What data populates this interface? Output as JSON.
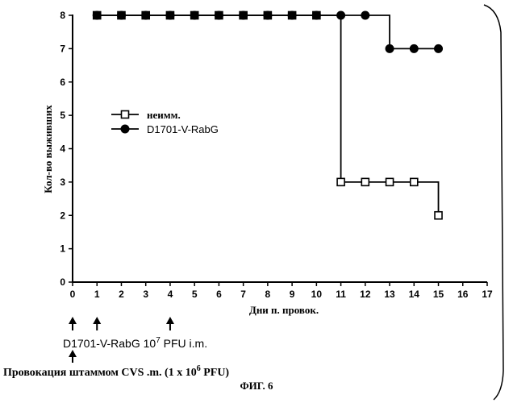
{
  "chart_data": {
    "type": "line",
    "ylabel": "Кол-во выживших",
    "xlabel": "Дни п. провок.",
    "xlim": [
      0,
      17
    ],
    "ylim": [
      0,
      8
    ],
    "xticks": [
      0,
      1,
      2,
      3,
      4,
      5,
      6,
      7,
      8,
      9,
      10,
      11,
      12,
      13,
      14,
      15,
      16,
      17
    ],
    "yticks": [
      0,
      1,
      2,
      3,
      4,
      5,
      6,
      7,
      8
    ],
    "grid": false,
    "legend": "center-left",
    "series": [
      {
        "name": "неимм.",
        "marker": "open-square",
        "step": true,
        "x": [
          1,
          2,
          3,
          4,
          5,
          6,
          7,
          8,
          9,
          10,
          11,
          12,
          13,
          14,
          15
        ],
        "y": [
          8,
          8,
          8,
          8,
          8,
          8,
          8,
          8,
          8,
          8,
          3,
          3,
          3,
          3,
          2
        ]
      },
      {
        "name": "D1701-V-RabG",
        "marker": "filled-circle",
        "step": true,
        "x": [
          1,
          2,
          3,
          4,
          5,
          6,
          7,
          8,
          9,
          10,
          11,
          12,
          13,
          14,
          15
        ],
        "y": [
          8,
          8,
          8,
          8,
          8,
          8,
          8,
          8,
          8,
          8,
          8,
          8,
          7,
          7,
          7
        ]
      }
    ],
    "annotations": {
      "immunization_days": [
        0,
        1,
        4
      ],
      "immunization_text": "D1701-V-RabG 10",
      "immunization_exp": "7",
      "immunization_suffix": " PFU i.m.",
      "challenge_day": 0,
      "challenge_text": "Провокация штаммом CVS .m. (1 x 10",
      "challenge_exp": "6",
      "challenge_suffix": " PFU)"
    },
    "caption": "ФИГ. 6"
  }
}
